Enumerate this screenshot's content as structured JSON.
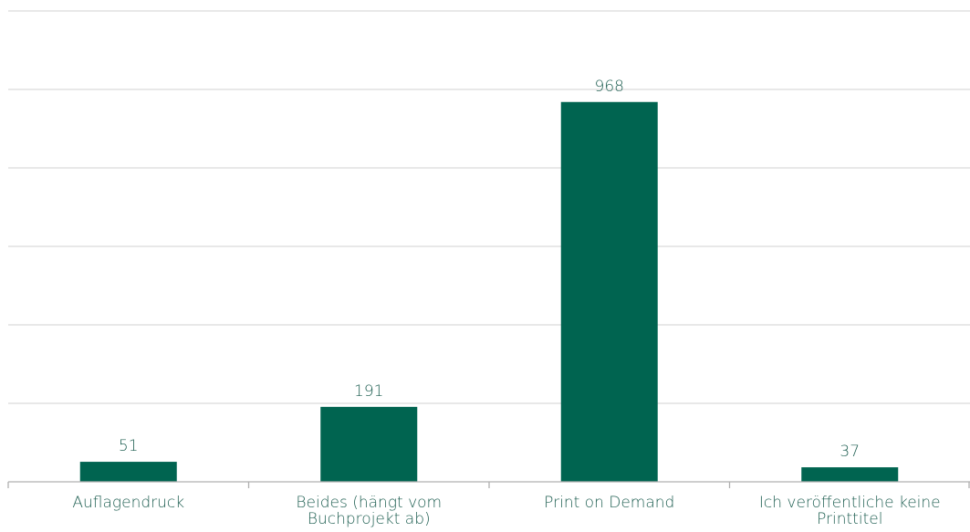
{
  "chart_data": {
    "type": "bar",
    "categories": [
      [
        "Auflagendruck"
      ],
      [
        "Beides (hängt vom",
        "Buchprojekt ab)"
      ],
      [
        "Print on Demand"
      ],
      [
        "Ich veröffentliche keine",
        "Printtitel"
      ]
    ],
    "values": [
      51,
      191,
      968,
      37
    ],
    "ylim": [
      0,
      1200
    ],
    "grid": true,
    "gridlines": [
      200,
      400,
      600,
      800,
      1000,
      1200
    ],
    "data_labels": true,
    "legend": false,
    "title": "",
    "xlabel": "",
    "ylabel": "",
    "colors": {
      "bar": "#006450",
      "label": "#1f5f52",
      "grid": "#d9d9d9",
      "axis": "#b0b0b0"
    }
  }
}
